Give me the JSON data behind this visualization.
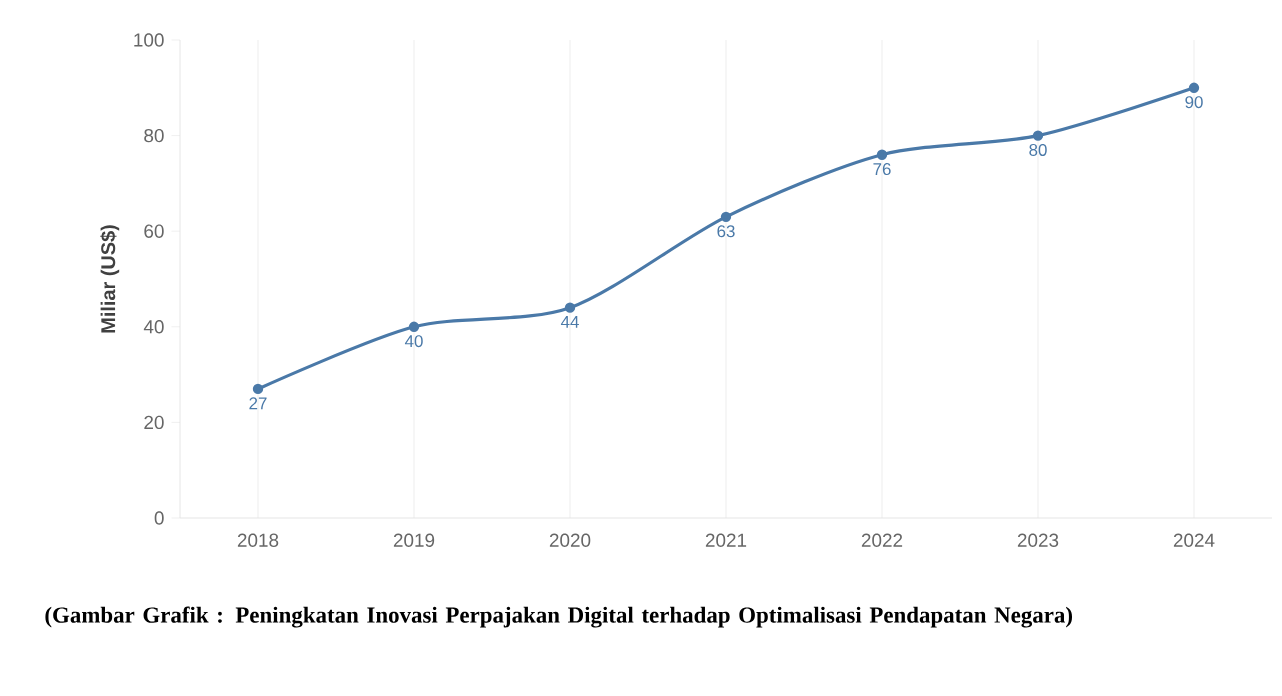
{
  "chart_data": {
    "type": "line",
    "ylabel": "Miliar (US$)",
    "categories": [
      "2018",
      "2019",
      "2020",
      "2021",
      "2022",
      "2023",
      "2024"
    ],
    "values": [
      27,
      40,
      44,
      63,
      76,
      80,
      90
    ],
    "color": "#4a79a8",
    "ylim": [
      0,
      100
    ],
    "yticks": [
      0,
      20,
      40,
      60,
      80,
      100
    ],
    "grid": "x",
    "marker": "circle",
    "data_labels": true,
    "annotations": [
      "(Gambar Grafik : Peningkatan Inovasi Perpajakan Digital terhadap Optimalisasi Pendapatan Negara)"
    ]
  }
}
